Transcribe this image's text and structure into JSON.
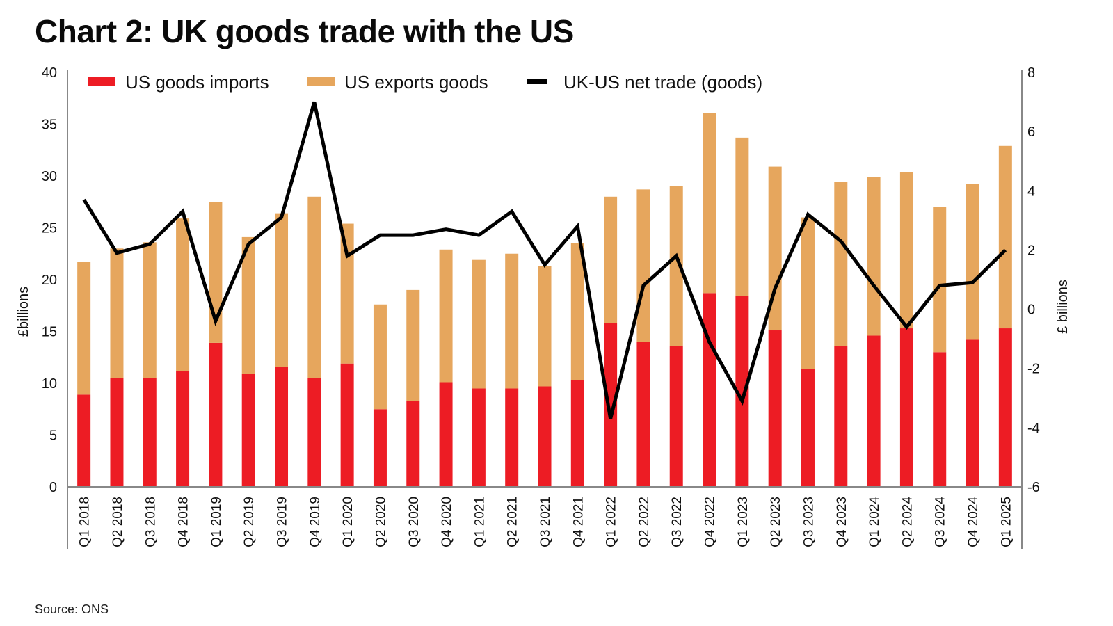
{
  "title": "Chart 2: UK goods trade with the US",
  "source": "Source: ONS",
  "colors": {
    "imports": "#ed1c24",
    "exports": "#e6a65d",
    "net": "#000000",
    "axis": "#888888"
  },
  "chart_data": {
    "type": "bar",
    "stacked": true,
    "title": "Chart 2: UK goods trade with the US",
    "categories": [
      "Q1 2018",
      "Q2 2018",
      "Q3 2018",
      "Q4 2018",
      "Q1 2019",
      "Q2 2019",
      "Q3 2019",
      "Q4 2019",
      "Q1 2020",
      "Q2 2020",
      "Q3 2020",
      "Q4 2020",
      "Q1 2021",
      "Q2 2021",
      "Q3 2021",
      "Q4 2021",
      "Q1 2022",
      "Q2 2022",
      "Q3 2022",
      "Q4 2022",
      "Q1 2023",
      "Q2 2023",
      "Q3 2023",
      "Q4 2023",
      "Q1 2024",
      "Q2 2024",
      "Q3 2024",
      "Q4 2024",
      "Q1 2025"
    ],
    "series": [
      {
        "name": "US goods imports",
        "type": "bar",
        "axis": "left",
        "values": [
          8.9,
          10.5,
          10.5,
          11.2,
          13.9,
          10.9,
          11.6,
          10.5,
          11.9,
          7.5,
          8.3,
          10.1,
          9.5,
          9.5,
          9.7,
          10.3,
          15.8,
          14.0,
          13.6,
          18.7,
          18.4,
          15.1,
          11.4,
          13.6,
          14.6,
          15.3,
          13.0,
          14.2,
          15.3
        ]
      },
      {
        "name": "US exports goods",
        "type": "bar",
        "axis": "left",
        "values": [
          12.8,
          12.5,
          13.1,
          14.7,
          13.6,
          13.2,
          14.8,
          17.5,
          13.5,
          10.1,
          10.7,
          12.8,
          12.4,
          13.0,
          11.6,
          13.2,
          12.2,
          14.7,
          15.4,
          17.4,
          15.3,
          15.8,
          14.6,
          15.8,
          15.3,
          15.1,
          14.0,
          15.0,
          17.6
        ]
      },
      {
        "name": "UK-US net trade (goods)",
        "type": "line",
        "axis": "right",
        "values": [
          3.7,
          1.9,
          2.2,
          3.3,
          -0.4,
          2.2,
          3.1,
          7.0,
          1.8,
          2.5,
          2.5,
          2.7,
          2.5,
          3.3,
          1.5,
          2.8,
          -3.7,
          0.8,
          1.8,
          -1.1,
          -3.1,
          0.7,
          3.2,
          2.3,
          0.8,
          -0.6,
          0.8,
          0.9,
          2.0
        ]
      }
    ],
    "xlabel": "",
    "ylabel": "£billions",
    "y2label": "£ billions",
    "ylim": [
      0,
      40
    ],
    "yticks": [
      "0",
      "5",
      "10",
      "15",
      "20",
      "25",
      "30",
      "35",
      "40"
    ],
    "y2lim": [
      -6,
      8
    ],
    "y2ticks": [
      "-6",
      "-4",
      "-2",
      "0",
      "2",
      "4",
      "6",
      "8"
    ],
    "grid": false,
    "legend": {
      "position": "top",
      "entries": [
        "US goods imports",
        "US exports goods",
        "UK-US net trade (goods)"
      ]
    }
  }
}
